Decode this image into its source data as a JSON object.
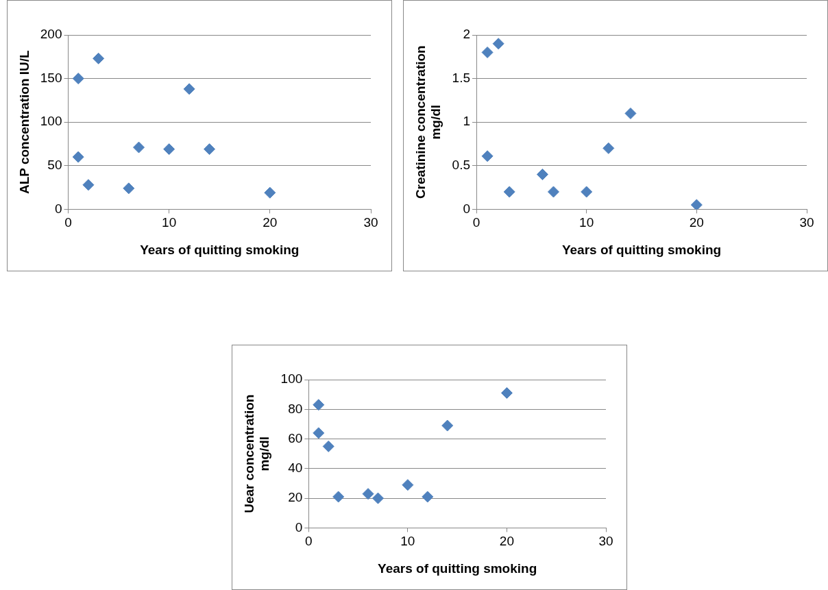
{
  "chart_data": [
    {
      "type": "scatter",
      "xlabel": "Years of quitting smoking",
      "ylabel": "ALP concentration IU/L",
      "xlim": [
        0,
        30
      ],
      "xticks": [
        0,
        10,
        20,
        30
      ],
      "ylim": [
        0,
        200
      ],
      "yticks": [
        0,
        50,
        100,
        150,
        200
      ],
      "grid": "y",
      "legend": false,
      "marker": "diamond",
      "series": [
        {
          "color": "#4f81bd",
          "x": [
            1,
            3,
            1,
            2,
            6,
            7,
            10,
            12,
            14,
            20
          ],
          "values": [
            150,
            173,
            60,
            28,
            24,
            71,
            69,
            138,
            69,
            19
          ]
        }
      ]
    },
    {
      "type": "scatter",
      "xlabel": "Years of quitting smoking",
      "ylabel": "Creatinine concentration\nmg/dl",
      "xlim": [
        0,
        30
      ],
      "xticks": [
        0,
        10,
        20,
        30
      ],
      "ylim": [
        0,
        2
      ],
      "yticks": [
        0,
        0.5,
        1,
        1.5,
        2
      ],
      "grid": "y",
      "legend": false,
      "marker": "diamond",
      "series": [
        {
          "color": "#4f81bd",
          "x": [
            1,
            2,
            1,
            3,
            6,
            7,
            10,
            12,
            14,
            20
          ],
          "values": [
            1.8,
            1.9,
            0.61,
            0.2,
            0.4,
            0.2,
            0.2,
            0.7,
            1.1,
            0.05
          ]
        }
      ]
    },
    {
      "type": "scatter",
      "xlabel": "Years of quitting smoking",
      "ylabel": "Uear concentration\nmg/dl",
      "xlim": [
        0,
        30
      ],
      "xticks": [
        0,
        10,
        20,
        30
      ],
      "ylim": [
        0,
        100
      ],
      "yticks": [
        0,
        20,
        40,
        60,
        80,
        100
      ],
      "grid": "y",
      "legend": false,
      "marker": "diamond",
      "series": [
        {
          "color": "#4f81bd",
          "x": [
            1,
            1,
            2,
            3,
            6,
            7,
            10,
            12,
            14,
            20
          ],
          "values": [
            83,
            64,
            55,
            21,
            23,
            20,
            29,
            21,
            69,
            91
          ]
        }
      ]
    }
  ]
}
